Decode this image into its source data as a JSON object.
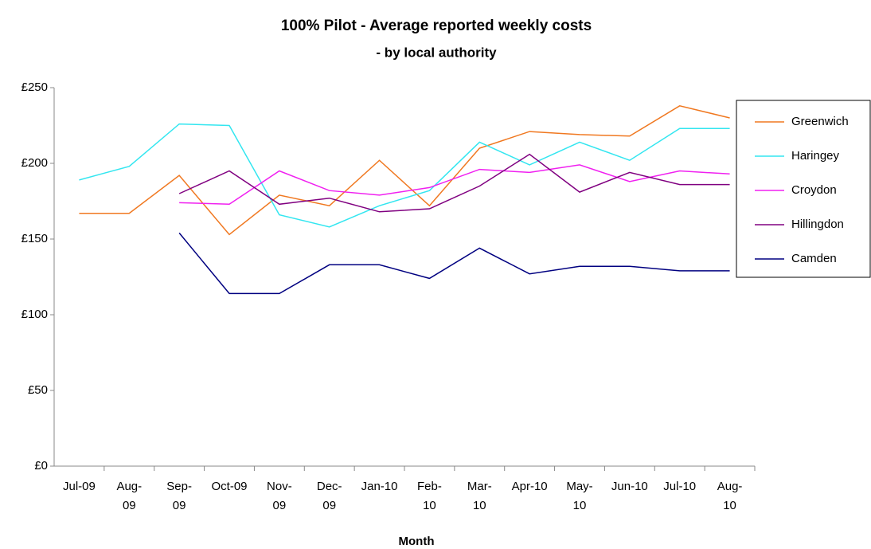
{
  "chart_data": {
    "type": "line",
    "title": "100% Pilot - Average reported weekly costs",
    "subtitle": "- by local authority",
    "x_label": "Month",
    "categories": [
      "Jul-09",
      "Aug-09",
      "Sep-09",
      "Oct-09",
      "Nov-09",
      "Dec-09",
      "Jan-10",
      "Feb-10",
      "Mar-10",
      "Apr-10",
      "May-10",
      "Jun-10",
      "Jul-10",
      "Aug-10"
    ],
    "series": [
      {
        "name": "Greenwich",
        "color": "#f07820",
        "values": [
          167,
          167,
          192,
          153,
          179,
          172,
          202,
          172,
          210,
          221,
          219,
          218,
          238,
          230
        ]
      },
      {
        "name": "Haringey",
        "color": "#33e6f0",
        "values": [
          189,
          198,
          226,
          225,
          166,
          158,
          172,
          182,
          214,
          199,
          214,
          202,
          223,
          223
        ]
      },
      {
        "name": "Croydon",
        "color": "#f020f0",
        "values": [
          null,
          null,
          174,
          173,
          195,
          182,
          179,
          184,
          196,
          194,
          199,
          188,
          195,
          193
        ]
      },
      {
        "name": "Hillingdon",
        "color": "#800080",
        "values": [
          null,
          null,
          180,
          195,
          173,
          177,
          168,
          170,
          185,
          206,
          181,
          194,
          186,
          186
        ]
      },
      {
        "name": "Camden",
        "color": "#000080",
        "values": [
          null,
          null,
          154,
          114,
          114,
          133,
          133,
          124,
          144,
          127,
          132,
          132,
          129,
          129
        ]
      }
    ],
    "ylim": [
      0,
      250
    ],
    "yticks": [
      {
        "value": 0,
        "label": "£0"
      },
      {
        "value": 50,
        "label": "£50"
      },
      {
        "value": 100,
        "label": "£100"
      },
      {
        "value": 150,
        "label": "£150"
      },
      {
        "value": 200,
        "label": "£200"
      },
      {
        "value": 250,
        "label": "£250"
      }
    ],
    "grid": false,
    "legend": "right"
  }
}
